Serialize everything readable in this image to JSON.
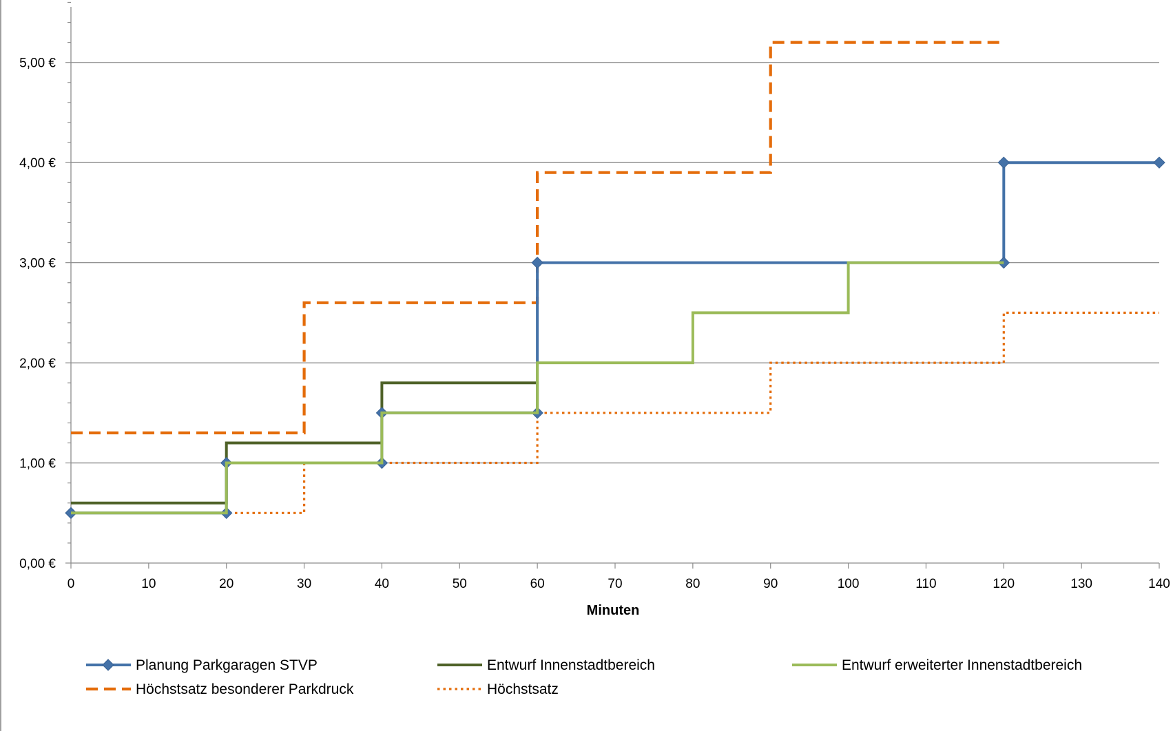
{
  "chart_data": {
    "type": "line",
    "step": true,
    "title": "",
    "xlabel": "Minuten",
    "ylabel": "",
    "xlim": [
      0,
      140
    ],
    "ylim": [
      0,
      5.5
    ],
    "x_ticks": [
      0,
      10,
      20,
      30,
      40,
      50,
      60,
      70,
      80,
      90,
      100,
      110,
      120,
      130,
      140
    ],
    "x_tick_labels": [
      "0",
      "10",
      "20",
      "30",
      "40",
      "50",
      "60",
      "70",
      "80",
      "90",
      "100",
      "110",
      "120",
      "130",
      "140"
    ],
    "y_ticks": [
      0,
      1,
      2,
      3,
      4,
      5
    ],
    "y_tick_labels": [
      "0,00 €",
      "1,00 €",
      "2,00 €",
      "3,00 €",
      "4,00 €",
      "5,00 €"
    ],
    "grid": "horizontal",
    "legend_position": "bottom",
    "series": [
      {
        "name": "Planung Parkgaragen STVP",
        "color": "#4472a8",
        "style": "solid",
        "marker": "diamond",
        "points": [
          [
            0,
            0.5
          ],
          [
            20,
            0.5
          ],
          [
            20,
            1.0
          ],
          [
            40,
            1.0
          ],
          [
            40,
            1.5
          ],
          [
            60,
            1.5
          ],
          [
            60,
            3.0
          ],
          [
            120,
            3.0
          ],
          [
            120,
            4.0
          ],
          [
            140,
            4.0
          ]
        ],
        "markers": [
          [
            0,
            0.5
          ],
          [
            20,
            0.5
          ],
          [
            20,
            1.0
          ],
          [
            40,
            1.0
          ],
          [
            40,
            1.5
          ],
          [
            60,
            1.5
          ],
          [
            60,
            3.0
          ],
          [
            120,
            3.0
          ],
          [
            120,
            4.0
          ],
          [
            140,
            4.0
          ]
        ]
      },
      {
        "name": "Entwurf Innenstadtbereich",
        "color": "#4f6228",
        "style": "solid",
        "points": [
          [
            0,
            0.6
          ],
          [
            20,
            0.6
          ],
          [
            20,
            1.2
          ],
          [
            40,
            1.2
          ],
          [
            40,
            1.8
          ],
          [
            60,
            1.8
          ],
          [
            60,
            1.5
          ]
        ]
      },
      {
        "name": "Entwurf erweiterter Innenstadtbereich",
        "color": "#9bbb59",
        "style": "solid",
        "points": [
          [
            0,
            0.5
          ],
          [
            20,
            0.5
          ],
          [
            20,
            1.0
          ],
          [
            40,
            1.0
          ],
          [
            40,
            1.5
          ],
          [
            60,
            1.5
          ],
          [
            60,
            2.0
          ],
          [
            80,
            2.0
          ],
          [
            80,
            2.5
          ],
          [
            100,
            2.5
          ],
          [
            100,
            3.0
          ],
          [
            120,
            3.0
          ]
        ]
      },
      {
        "name": "Höchstsatz besonderer Parkdruck",
        "color": "#e46c0a",
        "style": "dashed",
        "points": [
          [
            0,
            1.3
          ],
          [
            30,
            1.3
          ],
          [
            30,
            2.6
          ],
          [
            60,
            2.6
          ],
          [
            60,
            3.9
          ],
          [
            90,
            3.9
          ],
          [
            90,
            5.2
          ],
          [
            120,
            5.2
          ]
        ]
      },
      {
        "name": "Höchstsatz",
        "color": "#e46c0a",
        "style": "dotted",
        "points": [
          [
            0,
            0.5
          ],
          [
            30,
            0.5
          ],
          [
            30,
            1.0
          ],
          [
            60,
            1.0
          ],
          [
            60,
            1.5
          ],
          [
            90,
            1.5
          ],
          [
            90,
            2.0
          ],
          [
            120,
            2.0
          ],
          [
            120,
            2.5
          ],
          [
            140,
            2.5
          ]
        ]
      }
    ]
  }
}
